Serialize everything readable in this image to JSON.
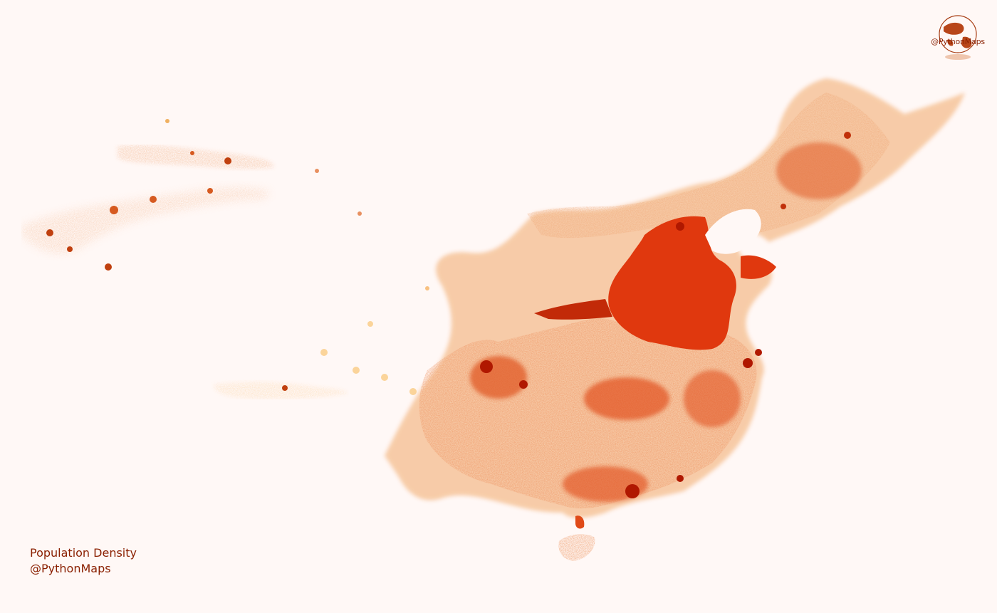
{
  "caption": {
    "line1": "Population Density",
    "line2": "@PythonMaps"
  },
  "logo": {
    "text": "@PythonMaps",
    "icon": "globe-icon"
  },
  "colors": {
    "background": "#fff8f6",
    "low_density": "#fde9c4",
    "mid_density": "#f2a06a",
    "high_density": "#e03a10",
    "highest_density": "#b01800",
    "text": "#8a1f00"
  },
  "map": {
    "region": "China",
    "metric": "population density"
  }
}
